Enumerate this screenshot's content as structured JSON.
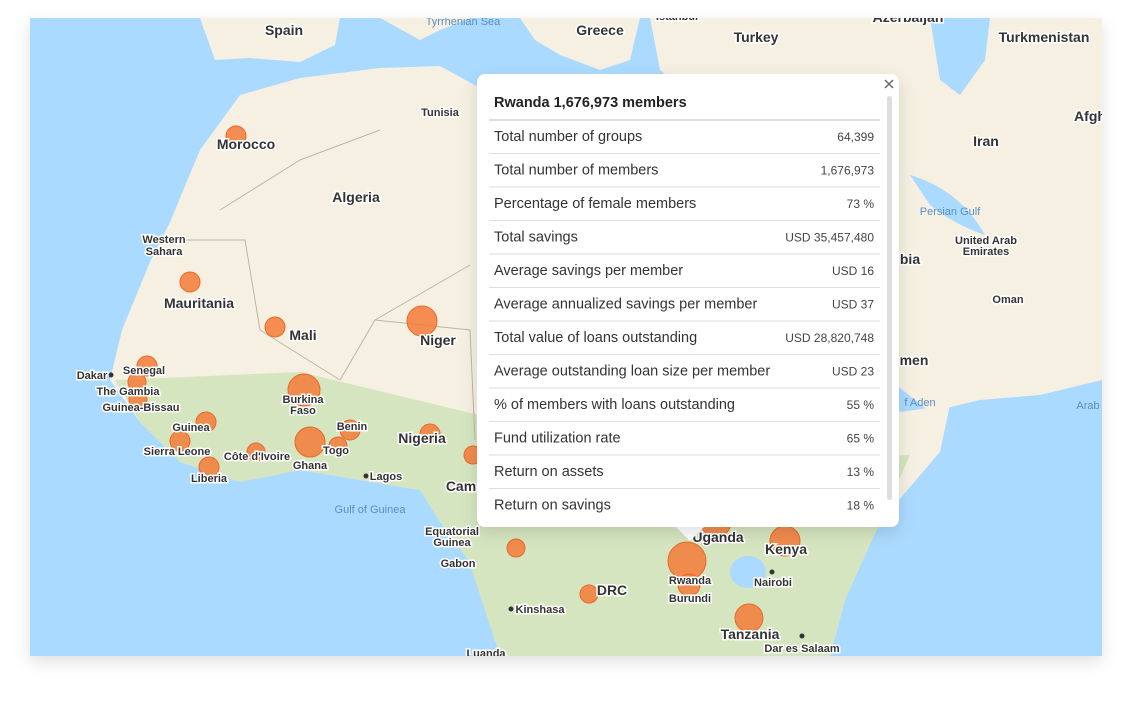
{
  "map": {
    "labels": [
      "Spain",
      "Greece",
      "Turkey",
      "Azerbaijan",
      "Turkmenistan",
      "Tyrrhenian Sea",
      "Istanbul",
      "Tunisia",
      "Morocco",
      "Algeria",
      "Iran",
      "Afgh",
      "Western",
      "Sahara",
      "Mauritania",
      "Mali",
      "Niger",
      "Persian Gulf",
      "United Arab",
      "Emirates",
      "bia",
      "Oman",
      "Dakar",
      "Senegal",
      "The Gambia",
      "Guinea-Bissau",
      "Burkina",
      "Faso",
      "Benin",
      "Guinea",
      "Sierra Leone",
      "Côte d'Ivoire",
      "Ghana",
      "Togo",
      "Nigeria",
      "Lagos",
      "Liberia",
      "Cam",
      "Gulf of Guinea",
      "Equatorial",
      "Guinea",
      "Gabon",
      "Kinshasa",
      "DRC",
      "Uganda",
      "Kenya",
      "Rwanda",
      "Burundi",
      "Nairobi",
      "Tanzania",
      "Dar es Salaam",
      "Luanda",
      "men",
      "f Aden",
      "Arab"
    ]
  },
  "popup": {
    "title": "Rwanda 1,676,973 members",
    "rows": [
      [
        "Total number of groups",
        "64,399"
      ],
      [
        "Total number of members",
        "1,676,973"
      ],
      [
        "Percentage of female members",
        "73 %"
      ],
      [
        "Total savings",
        "USD 35,457,480"
      ],
      [
        "Average savings per member",
        "USD 16"
      ],
      [
        "Average annualized savings per member",
        "USD 37"
      ],
      [
        "Total value of loans outstanding",
        "USD 28,820,748"
      ],
      [
        "Average outstanding loan size per member",
        "USD 23"
      ],
      [
        "% of members with loans outstanding",
        "55 %"
      ],
      [
        "Fund utilization rate",
        "65 %"
      ],
      [
        "Return on assets",
        "13 %"
      ],
      [
        "Return on savings",
        "18 %"
      ]
    ]
  }
}
